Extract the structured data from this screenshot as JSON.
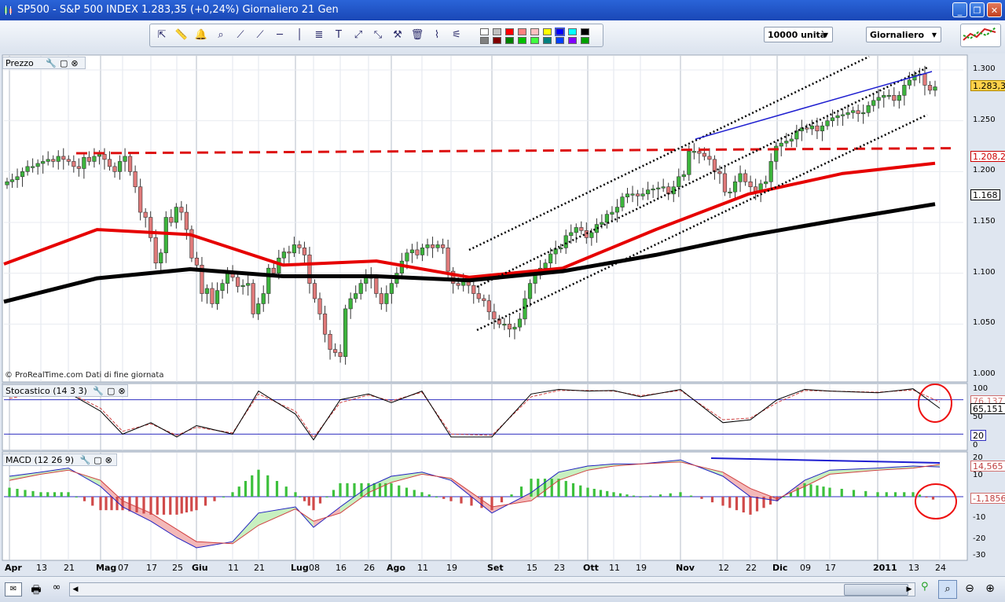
{
  "window": {
    "title": "SP500 - S&P 500 INDEX    1.283,35 (+0,24%)    Giornaliero  21 Gen",
    "controls": [
      "minimize",
      "restore",
      "close"
    ]
  },
  "toolbar": {
    "tools": [
      "pointer-icon",
      "ruler-icon",
      "bell-icon",
      "zoom-magnifier-icon",
      "line-icon",
      "trendline-icon",
      "horizontal-line-icon",
      "vertical-line-icon",
      "fibonacci-icon",
      "text-icon",
      "arrow-up-icon",
      "arrow-down-icon",
      "tools-icon",
      "trash-icon",
      "chart-pattern-icon",
      "indicator-icon"
    ],
    "palette": [
      "#ffffff",
      "#c0c0c0",
      "#ff0000",
      "#ff8080",
      "#ffc0c0",
      "#ffff00",
      "#0000ff",
      "#00ffff",
      "#000000",
      "#808080",
      "#800000",
      "#008000",
      "#00c000",
      "#40ff40",
      "#008080",
      "#0040ff",
      "#8000ff",
      "#00a000"
    ],
    "units_label": "10000 unità",
    "period_label": "Giornaliero"
  },
  "panes": {
    "price": {
      "header": "Prezzo",
      "credit": "© ProRealTime.com  Dati di fine giornata",
      "yticks": [
        "1.300",
        "1.250",
        "1.200",
        "1.150",
        "1.100",
        "1.050",
        "1.000"
      ],
      "last_price": "1.283,35",
      "ma_red_value": "1.208,2",
      "ma_black_value": "1.168"
    },
    "stochastic": {
      "header": "Stocastico (14 3 3)",
      "yticks": [
        "100",
        "50",
        "0"
      ],
      "value_1": "76,137",
      "value_2": "65,151",
      "level_low": "20"
    },
    "macd": {
      "header": "MACD (12 26 9)",
      "yticks": [
        "20",
        "10",
        "-10",
        "-20",
        "-30"
      ],
      "value_1": "14,565",
      "value_2": "-1,1856"
    }
  },
  "xaxis": {
    "labels": [
      "Apr",
      "13",
      "21",
      "Mag",
      "07",
      "17",
      "25",
      "Giu",
      "11",
      "21",
      "Lug",
      "08",
      "16",
      "26",
      "Ago",
      "11",
      "19",
      "Set",
      "15",
      "23",
      "Ott",
      "11",
      "19",
      "Nov",
      "12",
      "22",
      "Dic",
      "09",
      "17",
      "2011",
      "13",
      "24"
    ]
  },
  "colors": {
    "bull": "#3cb43c",
    "bear": "#e07a7a",
    "ma_red": "#e60000",
    "ma_black": "#000000",
    "channel": "#000000",
    "resistance": "#dd1111",
    "top_trend": "#1e1ed0",
    "annotation_circle": "#ee1111"
  },
  "chart_data": [
    {
      "type": "candlestick",
      "title": "SP500 - S&P 500 INDEX",
      "period": "Giornaliero",
      "ylim": [
        1000,
        1310
      ],
      "x_range": [
        "2010-04-01",
        "2011-01-21"
      ],
      "series": [
        {
          "name": "MA red",
          "dates": [
            "Apr",
            "Mag",
            "Giu",
            "Lug",
            "Ago",
            "Set",
            "Ott",
            "Nov",
            "Dic",
            "2011",
            "21 Gen"
          ],
          "values": [
            1109,
            1143,
            1138,
            1108,
            1112,
            1096,
            1105,
            1143,
            1178,
            1198,
            1208.2
          ]
        },
        {
          "name": "MA black",
          "dates": [
            "Apr",
            "Mag",
            "Giu",
            "Lug",
            "Ago",
            "Set",
            "Ott",
            "Nov",
            "Dic",
            "2011",
            "21 Gen"
          ],
          "values": [
            1072,
            1095,
            1104,
            1097,
            1097,
            1093,
            1102,
            1118,
            1137,
            1153,
            1168
          ]
        }
      ],
      "candles_close": [
        1190,
        1192,
        1195,
        1200,
        1205,
        1205,
        1208,
        1210,
        1212,
        1210,
        1215,
        1212,
        1210,
        1205,
        1203,
        1214,
        1210,
        1215,
        1217,
        1212,
        1205,
        1200,
        1210,
        1215,
        1200,
        1185,
        1160,
        1155,
        1135,
        1110,
        1120,
        1155,
        1150,
        1165,
        1160,
        1143,
        1115,
        1108,
        1080,
        1085,
        1070,
        1083,
        1090,
        1100,
        1096,
        1087,
        1088,
        1090,
        1060,
        1070,
        1080,
        1105,
        1100,
        1115,
        1121,
        1120,
        1128,
        1125,
        1118,
        1090,
        1075,
        1060,
        1040,
        1025,
        1022,
        1018,
        1065,
        1075,
        1080,
        1090,
        1098,
        1095,
        1080,
        1070,
        1080,
        1090,
        1100,
        1112,
        1120,
        1123,
        1118,
        1125,
        1128,
        1125,
        1128,
        1125,
        1102,
        1090,
        1088,
        1092,
        1088,
        1080,
        1075,
        1073,
        1062,
        1055,
        1050,
        1050,
        1045,
        1047,
        1055,
        1075,
        1090,
        1098,
        1105,
        1110,
        1119,
        1124,
        1125,
        1137,
        1140,
        1145,
        1142,
        1135,
        1140,
        1148,
        1150,
        1158,
        1160,
        1165,
        1175,
        1178,
        1178,
        1176,
        1178,
        1182,
        1183,
        1184,
        1185,
        1178,
        1185,
        1195,
        1197,
        1220,
        1220,
        1218,
        1215,
        1212,
        1200,
        1198,
        1180,
        1180,
        1190,
        1198,
        1190,
        1185,
        1180,
        1188,
        1190,
        1210,
        1225,
        1228,
        1230,
        1232,
        1240,
        1243,
        1242,
        1245,
        1240,
        1245,
        1250,
        1253,
        1255,
        1256,
        1258,
        1260,
        1257,
        1258,
        1265,
        1270,
        1273,
        1275,
        1275,
        1270,
        1275,
        1285,
        1290,
        1295,
        1296,
        1285,
        1280,
        1283.35
      ],
      "resistance_level": 1218,
      "channel_lines": "3 dotted parallel lines from Set to 2011",
      "top_trendline": "blue line from Nov high to Jan high"
    },
    {
      "type": "line",
      "title": "Stocastico (14 3 3)",
      "ylim": [
        0,
        100
      ],
      "levels": [
        20,
        80
      ],
      "series": [
        {
          "name": "%K",
          "dates": [
            "Apr",
            "13",
            "21",
            "Mag",
            "07",
            "17",
            "25",
            "Giu",
            "11",
            "21",
            "Lug",
            "08",
            "16",
            "26",
            "Ago",
            "11",
            "19",
            "Set",
            "15",
            "23",
            "Ott",
            "11",
            "19",
            "Nov",
            "12",
            "22",
            "Dic",
            "09",
            "17",
            "2011",
            "13",
            "24"
          ],
          "values": [
            85,
            95,
            92,
            60,
            20,
            40,
            15,
            35,
            20,
            95,
            55,
            10,
            80,
            90,
            75,
            95,
            15,
            15,
            90,
            98,
            95,
            96,
            85,
            98,
            40,
            45,
            80,
            98,
            95,
            92,
            99,
            65
          ]
        },
        {
          "name": "%D",
          "dates": [
            "Apr",
            "13",
            "21",
            "Mag",
            "07",
            "17",
            "25",
            "Giu",
            "11",
            "21",
            "Lug",
            "08",
            "16",
            "26",
            "Ago",
            "11",
            "19",
            "Set",
            "15",
            "23",
            "Ott",
            "11",
            "19",
            "Nov",
            "12",
            "22",
            "Dic",
            "09",
            "17",
            "2011",
            "13",
            "24"
          ],
          "values": [
            82,
            93,
            93,
            65,
            25,
            38,
            18,
            32,
            22,
            90,
            60,
            14,
            75,
            88,
            78,
            93,
            20,
            18,
            85,
            96,
            96,
            95,
            87,
            96,
            45,
            48,
            75,
            96,
            95,
            93,
            97,
            76
          ]
        }
      ]
    },
    {
      "type": "bar",
      "title": "MACD (12 26 9)",
      "ylim": [
        -30,
        20
      ],
      "categories": [
        "Apr",
        "13",
        "21",
        "Mag",
        "07",
        "17",
        "25",
        "Giu",
        "11",
        "21",
        "Lug",
        "08",
        "16",
        "26",
        "Ago",
        "11",
        "19",
        "Set",
        "15",
        "23",
        "Ott",
        "11",
        "19",
        "Nov",
        "12",
        "22",
        "Dic",
        "09",
        "17",
        "2011",
        "13",
        "24"
      ],
      "series": [
        {
          "name": "MACD",
          "values": [
            10,
            12,
            14,
            5,
            -5,
            -12,
            -20,
            -25,
            -22,
            -8,
            -5,
            -15,
            -5,
            5,
            10,
            12,
            8,
            -8,
            2,
            12,
            15,
            16,
            16,
            18,
            10,
            0,
            -2,
            8,
            13,
            14,
            15,
            14.565
          ]
        },
        {
          "name": "Signal",
          "values": [
            8,
            11,
            13,
            8,
            -2,
            -8,
            -16,
            -22,
            -23,
            -14,
            -6,
            -12,
            -8,
            2,
            7,
            11,
            9,
            -5,
            -2,
            8,
            13,
            15,
            16,
            17,
            12,
            4,
            -1,
            5,
            11,
            13,
            14,
            15.75
          ]
        },
        {
          "name": "Histogram",
          "values": [
            2,
            1,
            1,
            -3,
            -3,
            -4,
            -4,
            -3,
            1,
            6,
            1,
            -3,
            3,
            3,
            3,
            1,
            -1,
            -3,
            4,
            4,
            2,
            1,
            0,
            1,
            -2,
            -4,
            -1,
            3,
            2,
            1,
            1,
            -1.1856
          ]
        }
      ]
    }
  ]
}
